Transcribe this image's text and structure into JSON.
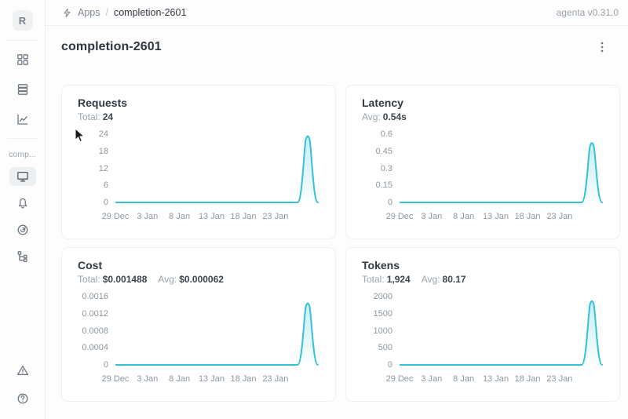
{
  "app": {
    "version_label": "agenta v0.31.0"
  },
  "sidebar": {
    "avatar_letter": "R",
    "section_label": "comp...",
    "top_icons": [
      "apps-grid-icon",
      "table-rows-icon",
      "line-chart-icon"
    ],
    "app_icons": [
      "monitor-icon",
      "bell-icon",
      "gauge-icon",
      "trace-tree-icon"
    ],
    "bottom_icons": [
      "warning-triangle-icon",
      "help-circle-icon"
    ]
  },
  "breadcrumb": {
    "root": "Apps",
    "separator": "/",
    "current": "completion-2601"
  },
  "page": {
    "title": "completion-2601"
  },
  "colors": {
    "line": "#35c2d6",
    "area_top_opacity": 0.28,
    "area_bottom_opacity": 0.02
  },
  "chart_data": [
    {
      "type": "area",
      "title": "Requests",
      "stats": [
        {
          "label": "Total:",
          "value": "24"
        }
      ],
      "x_ticks": [
        "29 Dec",
        "3 Jan",
        "8 Jan",
        "13 Jan",
        "18 Jan",
        "23 Jan"
      ],
      "y_ticks": [
        0,
        6,
        12,
        18,
        24
      ],
      "ylim": [
        0,
        24
      ],
      "xlabel": "",
      "ylabel": "",
      "grid": false,
      "legend": "none",
      "points": [
        [
          "29 Dec",
          0
        ],
        [
          "3 Jan",
          0
        ],
        [
          "8 Jan",
          0
        ],
        [
          "13 Jan",
          0
        ],
        [
          "18 Jan",
          0
        ],
        [
          "23 Jan",
          0
        ],
        [
          "27 Jan",
          0
        ],
        [
          "28 Jan",
          24
        ],
        [
          "29 Jan",
          0
        ]
      ]
    },
    {
      "type": "area",
      "title": "Latency",
      "stats": [
        {
          "label": "Avg:",
          "value": "0.54s"
        }
      ],
      "x_ticks": [
        "29 Dec",
        "3 Jan",
        "8 Jan",
        "13 Jan",
        "18 Jan",
        "23 Jan"
      ],
      "y_ticks": [
        0,
        0.15,
        0.3,
        0.45,
        0.6
      ],
      "ylim": [
        0,
        0.6
      ],
      "xlabel": "",
      "ylabel": "",
      "grid": false,
      "legend": "none",
      "points": [
        [
          "29 Dec",
          0
        ],
        [
          "3 Jan",
          0
        ],
        [
          "8 Jan",
          0
        ],
        [
          "13 Jan",
          0
        ],
        [
          "18 Jan",
          0
        ],
        [
          "23 Jan",
          0
        ],
        [
          "27 Jan",
          0
        ],
        [
          "28 Jan",
          0.54
        ],
        [
          "29 Jan",
          0
        ]
      ]
    },
    {
      "type": "area",
      "title": "Cost",
      "stats": [
        {
          "label": "Total:",
          "value": "$0.001488"
        },
        {
          "label": "Avg:",
          "value": "$0.000062"
        }
      ],
      "x_ticks": [
        "29 Dec",
        "3 Jan",
        "8 Jan",
        "13 Jan",
        "18 Jan",
        "23 Jan"
      ],
      "y_ticks": [
        0,
        0.0004,
        0.0008,
        0.0012,
        0.0016
      ],
      "ylim": [
        0,
        0.0016
      ],
      "xlabel": "",
      "ylabel": "",
      "grid": false,
      "legend": "none",
      "points": [
        [
          "29 Dec",
          0
        ],
        [
          "3 Jan",
          0
        ],
        [
          "8 Jan",
          0
        ],
        [
          "13 Jan",
          0
        ],
        [
          "18 Jan",
          0
        ],
        [
          "23 Jan",
          0
        ],
        [
          "27 Jan",
          0
        ],
        [
          "28 Jan",
          0.001488
        ],
        [
          "29 Jan",
          0
        ]
      ]
    },
    {
      "type": "area",
      "title": "Tokens",
      "stats": [
        {
          "label": "Total:",
          "value": "1,924"
        },
        {
          "label": "Avg:",
          "value": "80.17"
        }
      ],
      "x_ticks": [
        "29 Dec",
        "3 Jan",
        "8 Jan",
        "13 Jan",
        "18 Jan",
        "23 Jan"
      ],
      "y_ticks": [
        0,
        500,
        1000,
        1500,
        2000
      ],
      "ylim": [
        0,
        2000
      ],
      "xlabel": "",
      "ylabel": "",
      "grid": false,
      "legend": "none",
      "points": [
        [
          "29 Dec",
          0
        ],
        [
          "3 Jan",
          0
        ],
        [
          "8 Jan",
          0
        ],
        [
          "13 Jan",
          0
        ],
        [
          "18 Jan",
          0
        ],
        [
          "23 Jan",
          0
        ],
        [
          "27 Jan",
          0
        ],
        [
          "28 Jan",
          1924
        ],
        [
          "29 Jan",
          0
        ]
      ]
    }
  ]
}
